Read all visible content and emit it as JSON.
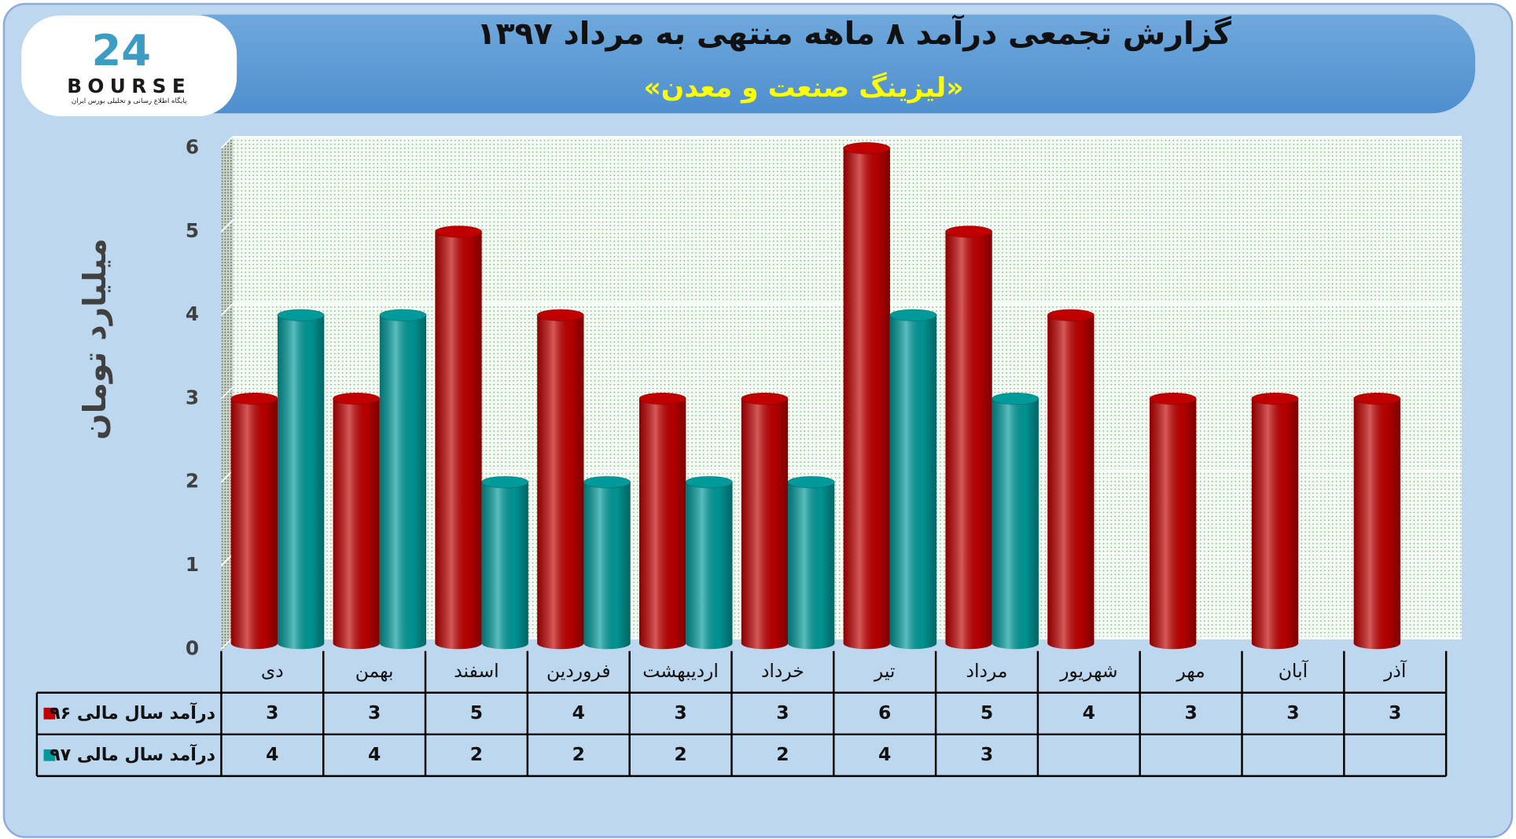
{
  "logo": {
    "number": "24",
    "name": "BOURSE",
    "tagline": "پایگاه اطلاع رسانی و تحلیلی بورس ایران"
  },
  "chart_data": {
    "type": "bar",
    "title": "گزارش تجمعی درآمد ۸ ماهه منتهی به مرداد ۱۳۹۷",
    "subtitle": "«لیزینگ صنعت و معدن»",
    "y_label": "میلیارد تومان",
    "categories": [
      "دی",
      "بهمن",
      "اسفند",
      "فروردین",
      "اردیبهشت",
      "خرداد",
      "تیر",
      "مرداد",
      "شهریور",
      "مهر",
      "آبان",
      "آذر"
    ],
    "series": [
      {
        "name": "درآمد سال مالی ۹۶",
        "color": "#c00000",
        "values": [
          3,
          3,
          5,
          4,
          3,
          3,
          6,
          5,
          4,
          3,
          3,
          3
        ]
      },
      {
        "name": "درآمد سال مالی ۹۷",
        "color": "#009a9a",
        "values": [
          4,
          4,
          2,
          2,
          2,
          2,
          4,
          3,
          null,
          null,
          null,
          null
        ]
      }
    ],
    "ylim": [
      0,
      6
    ],
    "yticks": [
      0,
      1,
      2,
      3,
      4,
      5,
      6
    ],
    "grid": true,
    "data_table": true
  }
}
